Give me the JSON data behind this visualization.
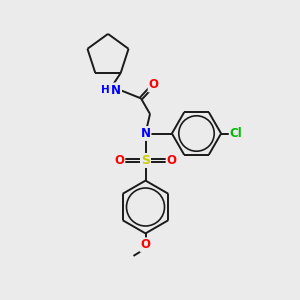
{
  "background_color": "#ebebeb",
  "bond_color": "#1a1a1a",
  "atom_colors": {
    "N": "#0000ff",
    "O": "#ff0000",
    "S": "#cccc00",
    "Cl": "#00bb00",
    "C": "#1a1a1a",
    "H": "#888888"
  },
  "fig_width": 3.0,
  "fig_height": 3.0,
  "dpi": 100
}
